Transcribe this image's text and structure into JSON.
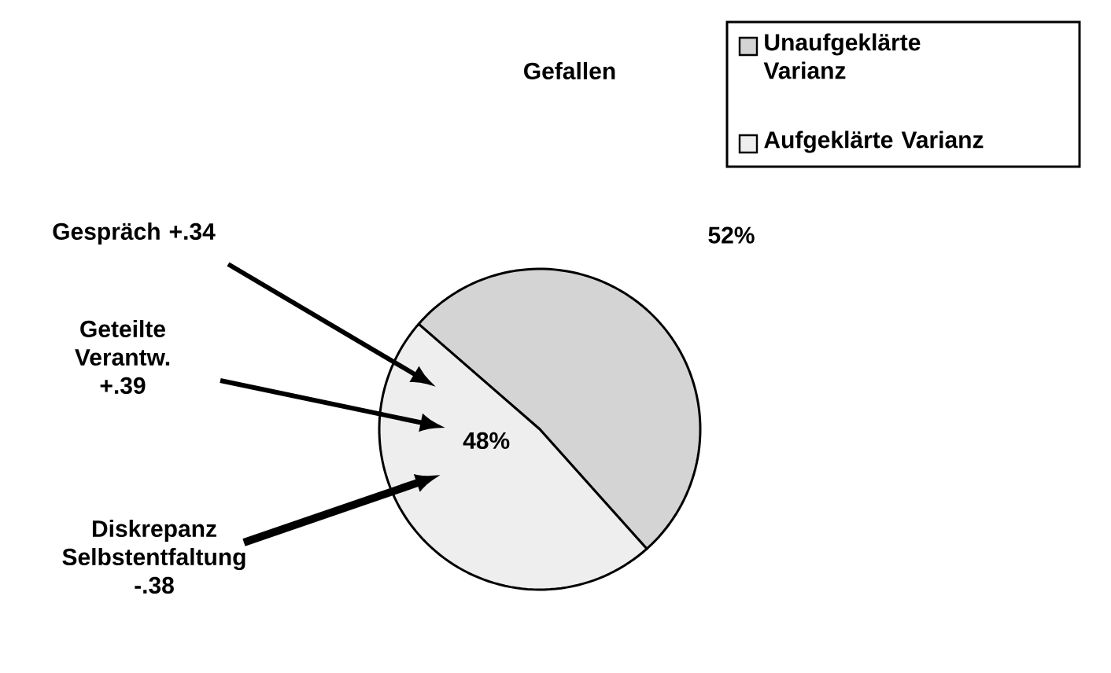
{
  "chart_data": {
    "type": "pie",
    "title": "Gefallen",
    "categories": [
      "Unaufgeklärte Varianz",
      "Aufgeklärte Varianz"
    ],
    "values": [
      52,
      48
    ],
    "colors": [
      "#d4d4d4",
      "#eeeeee"
    ],
    "value_labels": [
      "52%",
      "48%"
    ],
    "legend": "top right",
    "annotations": [
      "Gespräch +.34",
      "Geteilte Verantw. +.39",
      "Diskrepanz Selbstentfaltung -.38"
    ]
  }
}
